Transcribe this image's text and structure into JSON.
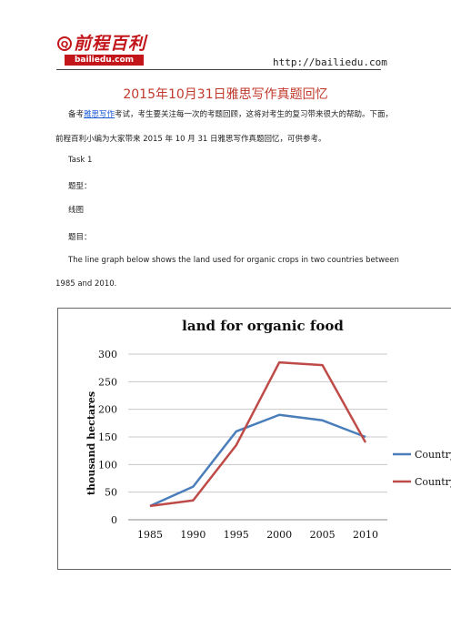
{
  "header": {
    "logo_mark": "Q",
    "logo_text": "前程百利",
    "logo_sub": "bailiedu.com",
    "url": "http://bailiedu.com"
  },
  "title": "2015年10月31日雅思写作真题回忆",
  "intro": {
    "line1_prefix": "备考",
    "line1_link": "雅思写作",
    "line1_suffix": "考试，考生要关注每一次的考题回顾，这将对考生的复习带来很大的帮助。下面，",
    "line2": "前程百利小编为大家带来 2015 年 10 月 31 日雅思写作真题回忆，可供参考。"
  },
  "task": {
    "label": "Task 1",
    "type_label": "题型：",
    "type_value": "线图",
    "question_label": "题目：",
    "question_line1": "The line graph below shows the land used for organic crops in two countries between",
    "question_line2": "1985 and 2010."
  },
  "chart_data": {
    "type": "line",
    "title": "land for organic food",
    "xlabel": "",
    "ylabel": "thousand hectares",
    "x": [
      1985,
      1990,
      1995,
      2000,
      2005,
      2010
    ],
    "ylim": [
      0,
      300
    ],
    "yticks": [
      0,
      50,
      100,
      150,
      200,
      250,
      300
    ],
    "grid": "horizontal",
    "legend": "right",
    "series": [
      {
        "name": "Country A",
        "color": "#4a7ebb",
        "values": [
          25,
          60,
          160,
          190,
          180,
          150
        ]
      },
      {
        "name": "Country B",
        "color": "#be4b48",
        "values": [
          25,
          35,
          135,
          285,
          280,
          140
        ]
      }
    ]
  }
}
